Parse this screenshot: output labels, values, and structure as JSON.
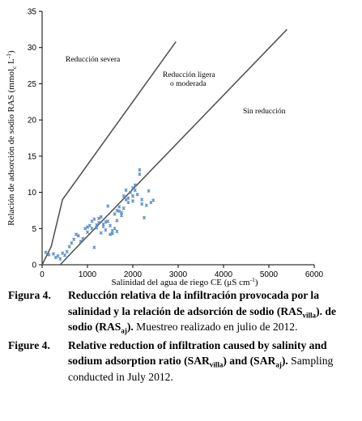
{
  "chart_data": {
    "type": "scatter",
    "xlabel": "Salinidad del agua de riego CE (μS cm⁻¹)",
    "ylabel": "Relación de adsorción de sodio RAS (mmolс L⁻¹)",
    "ylabel_parts": [
      "Relación de adsorción de sodio RAS (mmol",
      "c",
      " L",
      "-1",
      ")"
    ],
    "xlabel_parts": [
      "Salinidad del agua de riego CE (μS cm",
      "-1",
      ")"
    ],
    "xlim": [
      0,
      6000
    ],
    "ylim": [
      0,
      35
    ],
    "xticks": [
      "0",
      "1000",
      "2000",
      "3000",
      "4000",
      "5000",
      "6000"
    ],
    "yticks": [
      "0",
      "5",
      "10",
      "15",
      "20",
      "25",
      "30",
      "35"
    ],
    "grid": false,
    "region_labels": [
      "Reducción severa",
      "Reducción ligera",
      "o moderada",
      "Sin reducción"
    ],
    "boundary_lines": [
      {
        "points": [
          [
            0,
            0
          ],
          [
            200,
            2.5
          ],
          [
            450,
            9
          ],
          [
            2950,
            30.8
          ]
        ]
      },
      {
        "points": [
          [
            400,
            0
          ],
          [
            700,
            2
          ],
          [
            5400,
            32.5
          ]
        ]
      }
    ],
    "points": [
      [
        80,
        1.7
      ],
      [
        150,
        1.4
      ],
      [
        250,
        1.5
      ],
      [
        300,
        1.0
      ],
      [
        350,
        1.2
      ],
      [
        400,
        0.8
      ],
      [
        450,
        1.6
      ],
      [
        500,
        1.3
      ],
      [
        550,
        1.8
      ],
      [
        600,
        2.5
      ],
      [
        650,
        3.0
      ],
      [
        700,
        3.5
      ],
      [
        750,
        4.2
      ],
      [
        800,
        4.0
      ],
      [
        850,
        3.2
      ],
      [
        900,
        3.6
      ],
      [
        950,
        5.0
      ],
      [
        1000,
        4.5
      ],
      [
        1000,
        5.2
      ],
      [
        1050,
        5.4
      ],
      [
        1100,
        5.0
      ],
      [
        1150,
        2.4
      ],
      [
        1150,
        6.3
      ],
      [
        1200,
        5.5
      ],
      [
        1250,
        5.8
      ],
      [
        1300,
        4.4
      ],
      [
        1350,
        5.6
      ],
      [
        1400,
        4.8
      ],
      [
        1450,
        6.0
      ],
      [
        1450,
        8.1
      ],
      [
        1500,
        4.2
      ],
      [
        1500,
        5.4
      ],
      [
        1550,
        4.7
      ],
      [
        1550,
        4.3
      ],
      [
        1600,
        5.0
      ],
      [
        1600,
        7.0
      ],
      [
        1650,
        6.1
      ],
      [
        1650,
        7.5
      ],
      [
        1700,
        8.0
      ],
      [
        1750,
        7.2
      ],
      [
        1750,
        6.8
      ],
      [
        1800,
        7.8
      ],
      [
        1800,
        9.5
      ],
      [
        1850,
        10.3
      ],
      [
        1900,
        9.2
      ],
      [
        1950,
        10.0
      ],
      [
        2000,
        8.8
      ],
      [
        2000,
        9.5
      ],
      [
        2050,
        10.3
      ],
      [
        2050,
        11.0
      ],
      [
        2100,
        9.7
      ],
      [
        2150,
        12.5
      ],
      [
        2150,
        13.1
      ],
      [
        2200,
        9.0
      ],
      [
        2200,
        8.4
      ],
      [
        2250,
        6.5
      ],
      [
        2300,
        8.2
      ],
      [
        2350,
        10.2
      ],
      [
        2400,
        8.6
      ],
      [
        2450,
        8.9
      ],
      [
        1100,
        6.0
      ],
      [
        1250,
        6.4
      ],
      [
        1350,
        5.3
      ],
      [
        1700,
        7.4
      ],
      [
        1900,
        8.6
      ],
      [
        1650,
        4.6
      ],
      [
        1400,
        5.9
      ],
      [
        1850,
        9.0
      ],
      [
        2000,
        10.6
      ],
      [
        1200,
        5.1
      ],
      [
        1300,
        6.6
      ]
    ]
  },
  "captions": {
    "es": {
      "lead": "Figura 4.",
      "bold_1": "Reducción relativa de la infiltración provocada por la salinidad y la relación de adsorción de sodio (RAS",
      "sub_1": "villa",
      "bold_2": "). de sodio (RAS",
      "sub_2": "aj",
      "bold_3": ").",
      "normal": " Muestreo realizado en julio de 2012."
    },
    "en": {
      "lead": "Figure 4.",
      "bold_1": "Relative reduction of infiltration caused by salinity and sodium adsorption ratio (SAR",
      "sub_1": "villa",
      "bold_2": ") and (SAR",
      "sub_2": "aj",
      "bold_3": ").",
      "normal": " Sampling conducted in July 2012."
    }
  }
}
